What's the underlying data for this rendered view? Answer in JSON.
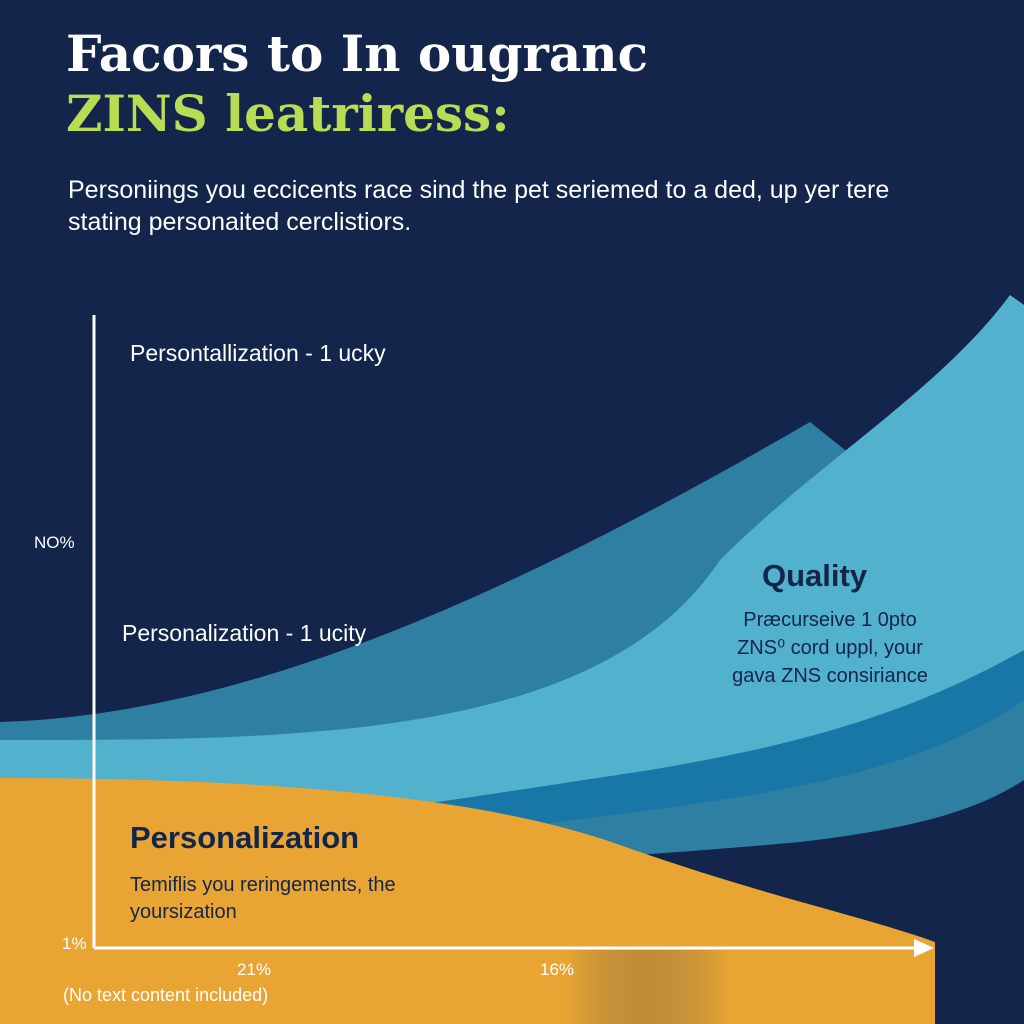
{
  "title": {
    "line1": "Facors to In ougranc",
    "line2": "ZINS leatriress:"
  },
  "subtitle": "Personiings you eccicents race sind the pet seriemed to a ded, up yer tere stating personaited cerclistiors.",
  "colors": {
    "background": "#13254b",
    "title_accent": "#b8dc54",
    "quality_light": "#52b1cc",
    "quality_mid": "#2f7fa3",
    "quality_deep": "#1877a6",
    "personalization": "#e8a534",
    "axis": "#ffffff"
  },
  "chart_data": {
    "type": "area",
    "title": "",
    "xlabel": "",
    "ylabel": "",
    "y_ticks": [
      "NO%",
      "1%"
    ],
    "x_ticks": [
      "21%",
      "16%"
    ],
    "series": [
      {
        "name": "Quality",
        "description": "Præcurseive 1 0pto ZNS⁰ cord uppl, your gava ZNS consiriance",
        "trend": "rising"
      },
      {
        "name": "Personalization",
        "description": "Temiflis you reringements, the yoursization",
        "trend": "falling"
      }
    ],
    "annotations": [
      "Persontallization - 1 ucky",
      "Personalization - 1 ucity"
    ],
    "footnote": "(No text content included)",
    "grid": false,
    "legend": "none"
  }
}
